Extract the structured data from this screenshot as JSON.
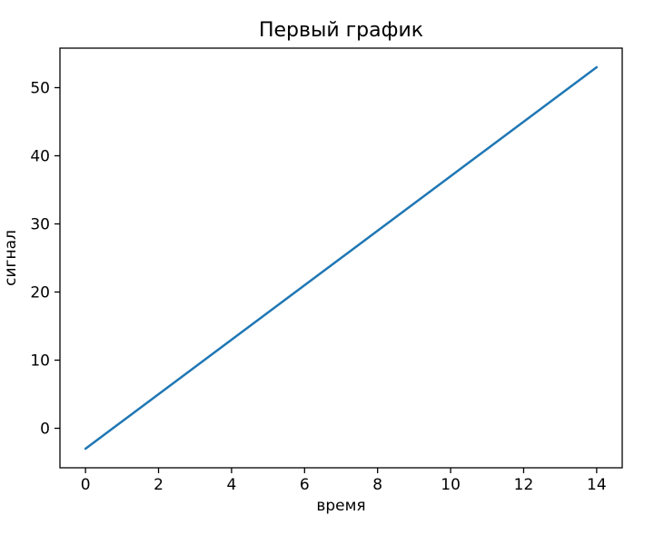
{
  "figure": {
    "background": "#ffffff",
    "text_color": "#000000",
    "spine_color": "#000000"
  },
  "chart_data": {
    "type": "line",
    "title": "Первый график",
    "xlabel": "время",
    "ylabel": "сигнал",
    "x": [
      0,
      1,
      2,
      3,
      4,
      5,
      6,
      7,
      8,
      9,
      10,
      11,
      12,
      13,
      14
    ],
    "y": [
      -3,
      1,
      5,
      9,
      13,
      17,
      21,
      25,
      29,
      33,
      37,
      41,
      45,
      49,
      53
    ],
    "series_name": "сигнал",
    "line_color": "#1f77b4",
    "xticks": [
      0,
      2,
      4,
      6,
      8,
      10,
      12,
      14
    ],
    "yticks": [
      0,
      10,
      20,
      30,
      40,
      50
    ],
    "xlim": [
      -0.7,
      14.7
    ],
    "ylim": [
      -5.8,
      55.8
    ],
    "grid": false,
    "legend": null
  }
}
